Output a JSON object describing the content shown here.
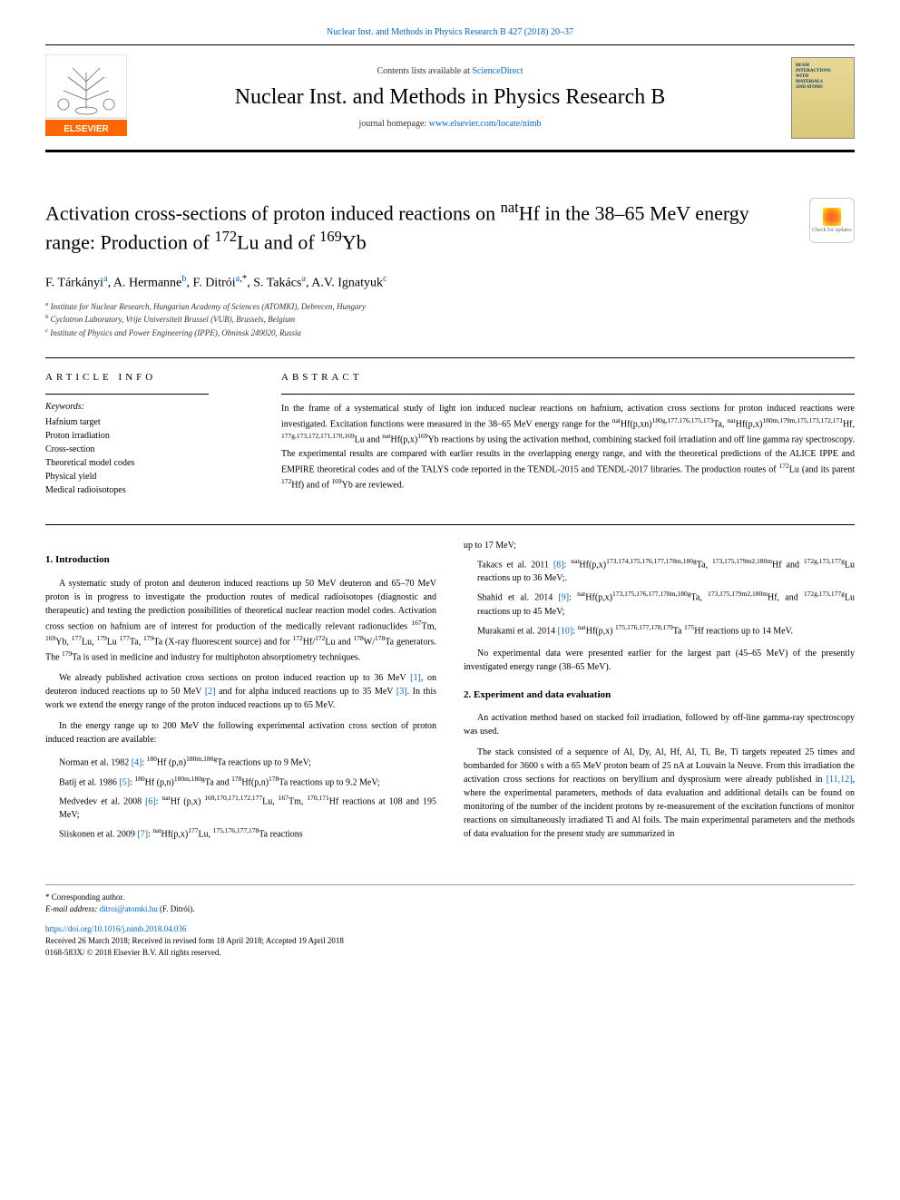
{
  "header": {
    "top_link": "Nuclear Inst. and Methods in Physics Research B 427 (2018) 20–37",
    "contents_prefix": "Contents lists available at ",
    "contents_link": "ScienceDirect",
    "journal_title": "Nuclear Inst. and Methods in Physics Research B",
    "homepage_prefix": "journal homepage: ",
    "homepage_link": "www.elsevier.com/locate/nimb",
    "cover_text": "BEAM INTERACTIONS WITH MATERIALS AND ATOMS",
    "check_updates": "Check for updates"
  },
  "article": {
    "title_html": "Activation cross-sections of proton induced reactions on <sup>nat</sup>Hf in the 38–65 MeV energy range: Production of <sup>172</sup>Lu and of <sup>169</sup>Yb",
    "authors_html": "F. Tárkányi<sup><a href=\"#\">a</a></sup>, A. Hermanne<sup><a href=\"#\">b</a></sup>, F. Ditrói<sup><a href=\"#\">a</a>,*</sup>, S. Takács<sup><a href=\"#\">a</a></sup>, A.V. Ignatyuk<sup><a href=\"#\">c</a></sup>",
    "affiliations": {
      "a": "Institute for Nuclear Research, Hungarian Academy of Sciences (ATOMKI), Debrecen, Hungary",
      "b": "Cyclotron Laboratory, Vrije Universiteit Brussel (VUB), Brussels, Belgium",
      "c": "Institute of Physics and Power Engineering (IPPE), Obninsk 249020, Russia"
    }
  },
  "info": {
    "heading": "ARTICLE INFO",
    "keywords_label": "Keywords:",
    "keywords": [
      "Hafnium target",
      "Proton irradiation",
      "Cross-section",
      "Theoretical model codes",
      "Physical yield",
      "Medical radioisotopes"
    ]
  },
  "abstract": {
    "heading": "ABSTRACT",
    "text_html": "In the frame of a systematical study of light ion induced nuclear reactions on hafnium, activation cross sections for proton induced reactions were investigated. Excitation functions were measured in the 38–65 MeV energy range for the <sup>nat</sup>Hf(p,xn)<sup>180g,177,176,175,173</sup>Ta, <sup>nat</sup>Hf(p,x)<sup>180m,179m,175,173,172,171</sup>Hf, <sup>177g,173,172,171,170,169</sup>Lu and <sup>nat</sup>Hf(p,x)<sup>169</sup>Yb reactions by using the activation method, combining stacked foil irradiation and off line gamma ray spectroscopy. The experimental results are compared with earlier results in the overlapping energy range, and with the theoretical predictions of the ALICE IPPE and EMPIRE theoretical codes and of the TALYS code reported in the TENDL-2015 and TENDL-2017 libraries. The production routes of <sup>172</sup>Lu (and its parent <sup>172</sup>Hf) and of <sup>169</sup>Yb are reviewed."
  },
  "sections": {
    "intro_heading": "1. Introduction",
    "intro_p1_html": "A systematic study of proton and deuteron induced reactions up 50 MeV deuteron and 65–70 MeV proton is in progress to investigate the production routes of medical radioisotopes (diagnostic and therapeutic) and testing the prediction possibilities of theoretical nuclear reaction model codes. Activation cross section on hafnium are of interest for production of the medically relevant radionuclides <sup>167</sup>Tm, <sup>169</sup>Yb, <sup>177</sup>Lu, <sup>179</sup>Lu <sup>177</sup>Ta, <sup>179</sup>Ta (X-ray fluorescent source) and for <sup>172</sup>Hf/<sup>172</sup>Lu and <sup>178</sup>W/<sup>178</sup>Ta generators. The <sup>179</sup>Ta is used in medicine and industry for multiphoton absorptiometry techniques.",
    "intro_p2_html": "We already published activation cross sections on proton induced reaction up to 36 MeV <a class=\"ref-link\" href=\"#\">[1]</a>, on deuteron induced reactions up to 50 MeV <a class=\"ref-link\" href=\"#\">[2]</a> and for alpha induced reactions up to 35 MeV <a class=\"ref-link\" href=\"#\">[3]</a>. In this work we extend the energy range of the proton induced reactions up to 65 MeV.",
    "intro_p3": "In the energy range up to 200 MeV the following experimental activation cross section of proton induced reaction are available:",
    "refs_left": [
      "Norman et al. 1982 <a class=\"ref-link\" href=\"#\">[4]</a>: <sup>180</sup>Hf (p,n)<sup>180m,180g</sup>Ta reactions up to 9 MeV;",
      "Batij et al. 1986 <a class=\"ref-link\" href=\"#\">[5]</a>: <sup>180</sup>Hf (p,n)<sup>180m,180g</sup>Ta and <sup>178</sup>Hf(p,n)<sup>178</sup>Ta reactions up to 9.2 MeV;",
      "Medvedev et al. 2008 <a class=\"ref-link\" href=\"#\">[6]</a>: <sup>nat</sup>Hf (p,x) <sup>169,170,171,172,177</sup>Lu, <sup>167</sup>Tm, <sup>170,171</sup>Hf reactions at 108 and 195 MeV;",
      "Siiskonen et al. 2009 <a class=\"ref-link\" href=\"#\">[7]</a>: <sup>nat</sup>Hf(p,x)<sup>177</sup>Lu, <sup>175,176,177,178</sup>Ta reactions"
    ],
    "refs_right": [
      "up to 17 MeV;",
      "Takacs et al. 2011 <a class=\"ref-link\" href=\"#\">[8]</a>: <sup>nat</sup>Hf(p,x)<sup>173,174,175,176,177,178m,180g</sup>Ta, <sup>173,175,179m2,180m</sup>Hf and <sup>172g,173,177g</sup>Lu reactions up to 36 MeV;.",
      "Shahid et al. 2014 <a class=\"ref-link\" href=\"#\">[9]</a>: <sup>nat</sup>Hf(p,x)<sup>173,175,176,177,178m,180g</sup>Ta, <sup>173,175,179m2,180m</sup>Hf, and <sup>172g,173,177g</sup>Lu reactions up to 45 MeV;",
      "Murakami et al. 2014 <a class=\"ref-link\" href=\"#\">[10]</a>: <sup>nat</sup>Hf(p,x) <sup>175,176,177,178,179</sup>Ta <sup>175</sup>Hf reactions up to 14 MeV."
    ],
    "intro_p4": "No experimental data were presented earlier for the largest part (45–65 MeV) of the presently investigated energy range (38–65 MeV).",
    "exp_heading": "2. Experiment and data evaluation",
    "exp_p1": "An activation method based on stacked foil irradiation, followed by off-line gamma-ray spectroscopy was used.",
    "exp_p2_html": "The stack consisted of a sequence of Al, Dy, Al, Hf, Al, Ti, Be, Ti targets repeated 25 times and bombarded for 3600 s with a 65 MeV proton beam of 25 nA at Louvain la Neuve. From this irradiation the activation cross sections for reactions on beryllium and dysprosium were already published in <a class=\"ref-link\" href=\"#\">[11,12]</a>, where the experimental parameters, methods of data evaluation and additional details can be found on monitoring of the number of the incident protons by re-measurement of the excitation functions of monitor reactions on simultaneously irradiated Ti and Al foils. The main experimental parameters and the methods of data evaluation for the present study are summarized in"
  },
  "footer": {
    "corresponding": "* Corresponding author.",
    "email_label": "E-mail address: ",
    "email": "ditroi@atomki.hu",
    "email_suffix": " (F. Ditrói).",
    "doi": "https://doi.org/10.1016/j.nimb.2018.04.036",
    "received": "Received 26 March 2018; Received in revised form 18 April 2018; Accepted 19 April 2018",
    "copyright": "0168-583X/ © 2018 Elsevier B.V. All rights reserved."
  },
  "colors": {
    "link": "#0066cc",
    "text": "#000000",
    "background": "#ffffff"
  }
}
